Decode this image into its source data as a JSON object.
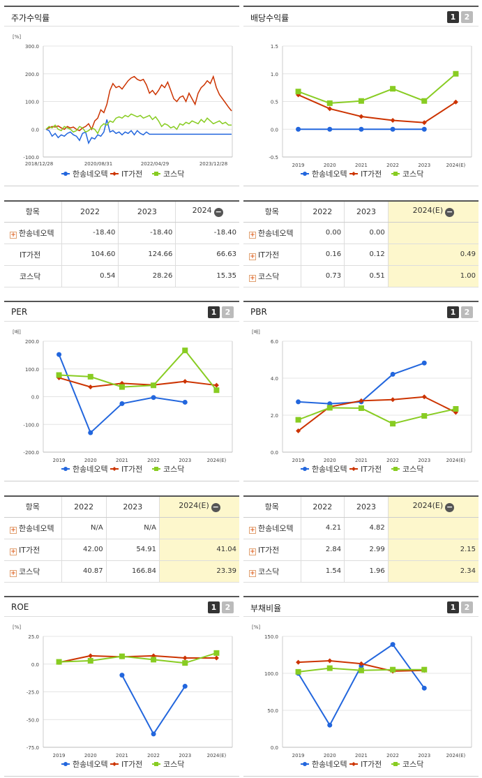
{
  "series_names": [
    "한송네오텍",
    "IT가전",
    "코스닥"
  ],
  "colors": {
    "s0": "#2266dd",
    "s1": "#cc3300",
    "s2": "#88cc22"
  },
  "stock": {
    "title": "주가수익률",
    "unit": "[%]",
    "chart_data": {
      "type": "line",
      "yticks": [
        "300.0",
        "200.0",
        "100.0",
        "0.0",
        "-100.0"
      ],
      "ylim": [
        -100,
        300
      ],
      "xticks": [
        "2018/12/28",
        "2020/08/31",
        "2022/04/29",
        "2023/12/28"
      ],
      "series": [
        {
          "name": "한송네오텍",
          "values": [
            0,
            -5,
            -25,
            -15,
            -30,
            -20,
            -25,
            -15,
            -10,
            -20,
            -25,
            -40,
            -15,
            -10,
            -50,
            -30,
            -35,
            -20,
            -25,
            -10,
            35,
            -10,
            -5,
            -15,
            -10,
            -20,
            -10,
            -15,
            -5,
            -20,
            -5,
            -15,
            -20,
            -10,
            -18,
            -18,
            -18,
            -18,
            -18,
            -18,
            -18,
            -18,
            -18,
            -18,
            -18,
            -18,
            -18,
            -18,
            -18,
            -18,
            -18,
            -18,
            -18,
            -18,
            -18,
            -18,
            -18,
            -18,
            -18,
            -18,
            -18,
            -18
          ]
        },
        {
          "name": "IT가전",
          "values": [
            0,
            5,
            10,
            8,
            12,
            5,
            0,
            10,
            5,
            8,
            0,
            -5,
            5,
            10,
            20,
            0,
            30,
            40,
            70,
            60,
            90,
            140,
            165,
            150,
            155,
            145,
            160,
            175,
            185,
            190,
            180,
            175,
            180,
            160,
            130,
            140,
            125,
            140,
            160,
            150,
            170,
            140,
            110,
            100,
            115,
            120,
            100,
            130,
            110,
            90,
            130,
            150,
            160,
            175,
            165,
            190,
            150,
            125,
            110,
            95,
            80,
            66
          ]
        },
        {
          "name": "코스닥",
          "values": [
            0,
            10,
            5,
            15,
            0,
            -5,
            10,
            5,
            0,
            -10,
            -5,
            10,
            5,
            -10,
            -5,
            5,
            0,
            -15,
            10,
            20,
            15,
            30,
            25,
            40,
            45,
            40,
            50,
            45,
            55,
            50,
            45,
            50,
            40,
            45,
            50,
            35,
            45,
            30,
            10,
            20,
            15,
            5,
            10,
            0,
            20,
            15,
            25,
            20,
            30,
            25,
            20,
            35,
            25,
            40,
            30,
            20,
            25,
            30,
            20,
            25,
            15,
            15
          ]
        }
      ]
    },
    "table": {
      "headers": [
        "항목",
        "2022",
        "2023",
        "2024"
      ],
      "rows": [
        {
          "name": "한송네오텍",
          "plus": true,
          "v": [
            "-18.40",
            "-18.40",
            "-18.40"
          ]
        },
        {
          "name": "IT가전",
          "plus": false,
          "v": [
            "104.60",
            "124.66",
            "66.63"
          ]
        },
        {
          "name": "코스닥",
          "plus": false,
          "v": [
            "0.54",
            "28.26",
            "15.35"
          ]
        }
      ]
    }
  },
  "dividend": {
    "title": "배당수익률",
    "unit": "",
    "chart_data": {
      "type": "line",
      "ylim": [
        -0.5,
        1.5
      ],
      "yticks": [
        "1.5",
        "1.0",
        "0.5",
        "0.0",
        "-0.5"
      ],
      "categories": [
        "2019",
        "2020",
        "2021",
        "2022",
        "2023",
        "2024(E)"
      ],
      "series": [
        {
          "name": "한송네오텍",
          "values": [
            0,
            0,
            0,
            0,
            0,
            null
          ]
        },
        {
          "name": "IT가전",
          "values": [
            0.62,
            0.37,
            0.23,
            0.16,
            0.12,
            0.49
          ]
        },
        {
          "name": "코스닥",
          "values": [
            0.68,
            0.47,
            0.51,
            0.73,
            0.51,
            1.0
          ]
        }
      ]
    },
    "table": {
      "headers": [
        "항목",
        "2022",
        "2023",
        "2024(E)"
      ],
      "rows": [
        {
          "name": "한송네오텍",
          "plus": true,
          "v": [
            "0.00",
            "0.00",
            ""
          ]
        },
        {
          "name": "IT가전",
          "plus": true,
          "v": [
            "0.16",
            "0.12",
            "0.49"
          ]
        },
        {
          "name": "코스닥",
          "plus": true,
          "v": [
            "0.73",
            "0.51",
            "1.00"
          ]
        }
      ]
    }
  },
  "per": {
    "title": "PER",
    "unit": "[배]",
    "chart_data": {
      "type": "line",
      "ylim": [
        -200,
        200
      ],
      "yticks": [
        "200.0",
        "100.0",
        "0.0",
        "-100.0",
        "-200.0"
      ],
      "categories": [
        "2019",
        "2020",
        "2021",
        "2022",
        "2023",
        "2024(E)"
      ],
      "series": [
        {
          "name": "한송네오텍",
          "values": [
            152,
            -130,
            -25,
            -3,
            -20,
            null
          ]
        },
        {
          "name": "IT가전",
          "values": [
            68,
            35,
            48,
            42,
            55,
            41.04
          ]
        },
        {
          "name": "코스닥",
          "values": [
            78,
            72,
            35,
            40.87,
            166.84,
            23.39
          ]
        }
      ]
    },
    "table": {
      "headers": [
        "항목",
        "2022",
        "2023",
        "2024(E)"
      ],
      "rows": [
        {
          "name": "한송네오텍",
          "plus": true,
          "v": [
            "N/A",
            "N/A",
            ""
          ]
        },
        {
          "name": "IT가전",
          "plus": true,
          "v": [
            "42.00",
            "54.91",
            "41.04"
          ]
        },
        {
          "name": "코스닥",
          "plus": true,
          "v": [
            "40.87",
            "166.84",
            "23.39"
          ]
        }
      ]
    }
  },
  "pbr": {
    "title": "PBR",
    "unit": "[배]",
    "chart_data": {
      "type": "line",
      "ylim": [
        0,
        6
      ],
      "yticks": [
        "6.0",
        "4.0",
        "2.0",
        "0.0"
      ],
      "categories": [
        "2019",
        "2020",
        "2021",
        "2022",
        "2023",
        "2024(E)"
      ],
      "series": [
        {
          "name": "한송네오텍",
          "values": [
            2.72,
            2.62,
            2.72,
            4.21,
            4.82,
            null
          ]
        },
        {
          "name": "IT가전",
          "values": [
            1.15,
            2.45,
            2.78,
            2.84,
            2.99,
            2.15
          ]
        },
        {
          "name": "코스닥",
          "values": [
            1.75,
            2.4,
            2.38,
            1.54,
            1.96,
            2.34
          ]
        }
      ]
    },
    "table": {
      "headers": [
        "항목",
        "2022",
        "2023",
        "2024(E)"
      ],
      "rows": [
        {
          "name": "한송네오텍",
          "plus": true,
          "v": [
            "4.21",
            "4.82",
            ""
          ]
        },
        {
          "name": "IT가전",
          "plus": true,
          "v": [
            "2.84",
            "2.99",
            "2.15"
          ]
        },
        {
          "name": "코스닥",
          "plus": true,
          "v": [
            "1.54",
            "1.96",
            "2.34"
          ]
        }
      ]
    }
  },
  "roe": {
    "title": "ROE",
    "unit": "[%]",
    "chart_data": {
      "type": "line",
      "ylim": [
        -75,
        25
      ],
      "yticks": [
        "25.0",
        "0.0",
        "-25.0",
        "-50.0",
        "-75.0"
      ],
      "categories": [
        "2019",
        "2020",
        "2021",
        "2022",
        "2023",
        "2024(E)"
      ],
      "series": [
        {
          "name": "한송네오텍",
          "values": [
            null,
            null,
            -10,
            -63,
            -20,
            null
          ]
        },
        {
          "name": "IT가전",
          "values": [
            1.5,
            7.5,
            6.5,
            7.5,
            5.5,
            5.5
          ]
        },
        {
          "name": "코스닥",
          "values": [
            2,
            3,
            7,
            4,
            1,
            10
          ]
        }
      ]
    }
  },
  "debt": {
    "title": "부채비율",
    "unit": "[%]",
    "chart_data": {
      "type": "line",
      "ylim": [
        0,
        150
      ],
      "yticks": [
        "150.0",
        "100.0",
        "50.0",
        "0.0"
      ],
      "categories": [
        "2019",
        "2020",
        "2021",
        "2022",
        "2023",
        "2024(E)"
      ],
      "series": [
        {
          "name": "한송네오텍",
          "values": [
            100,
            30,
            110,
            139,
            80,
            null
          ]
        },
        {
          "name": "IT가전",
          "values": [
            115,
            117,
            113,
            103,
            104,
            null
          ]
        },
        {
          "name": "코스닥",
          "values": [
            102,
            107,
            104,
            105,
            105,
            null
          ]
        }
      ]
    }
  }
}
